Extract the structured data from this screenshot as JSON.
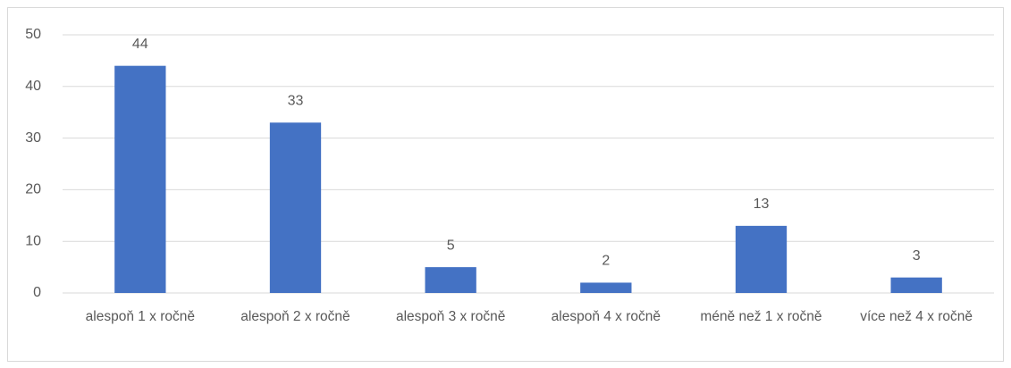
{
  "chart_data": {
    "type": "bar",
    "categories": [
      "alespoň 1 x ročně",
      "alespoň 2 x ročně",
      "alespoň 3 x ročně",
      "alespoň 4 x ročně",
      "méně než 1 x ročně",
      "více než 4 x ročně"
    ],
    "values": [
      44,
      33,
      5,
      2,
      13,
      3
    ],
    "color": "#4472c4",
    "ylim": [
      0,
      50
    ],
    "yticks": [
      0,
      10,
      20,
      30,
      40,
      50
    ],
    "grid": true
  }
}
